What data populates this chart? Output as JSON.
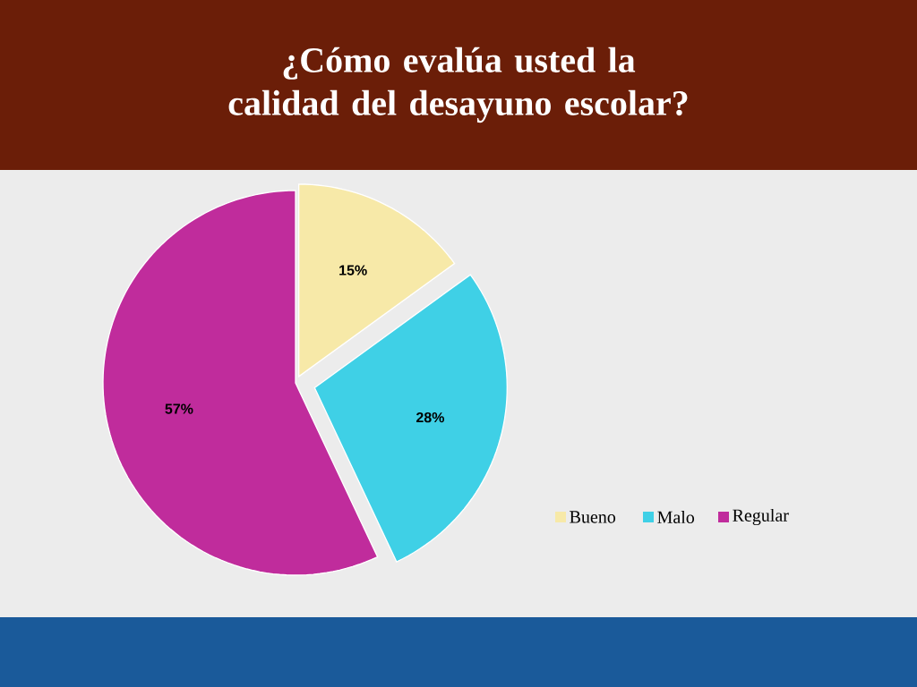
{
  "chart_data": {
    "type": "pie",
    "title": "¿Cómo evalúa usted la calidad del desayuno escolar?",
    "categories": [
      "Bueno",
      "Malo",
      "Regular"
    ],
    "values": [
      15,
      28,
      57
    ],
    "colors": [
      "#f7e9a8",
      "#3fd0e6",
      "#c02c9c"
    ],
    "value_labels": [
      "15%",
      "28%",
      "57%"
    ],
    "legend": "right"
  }
}
